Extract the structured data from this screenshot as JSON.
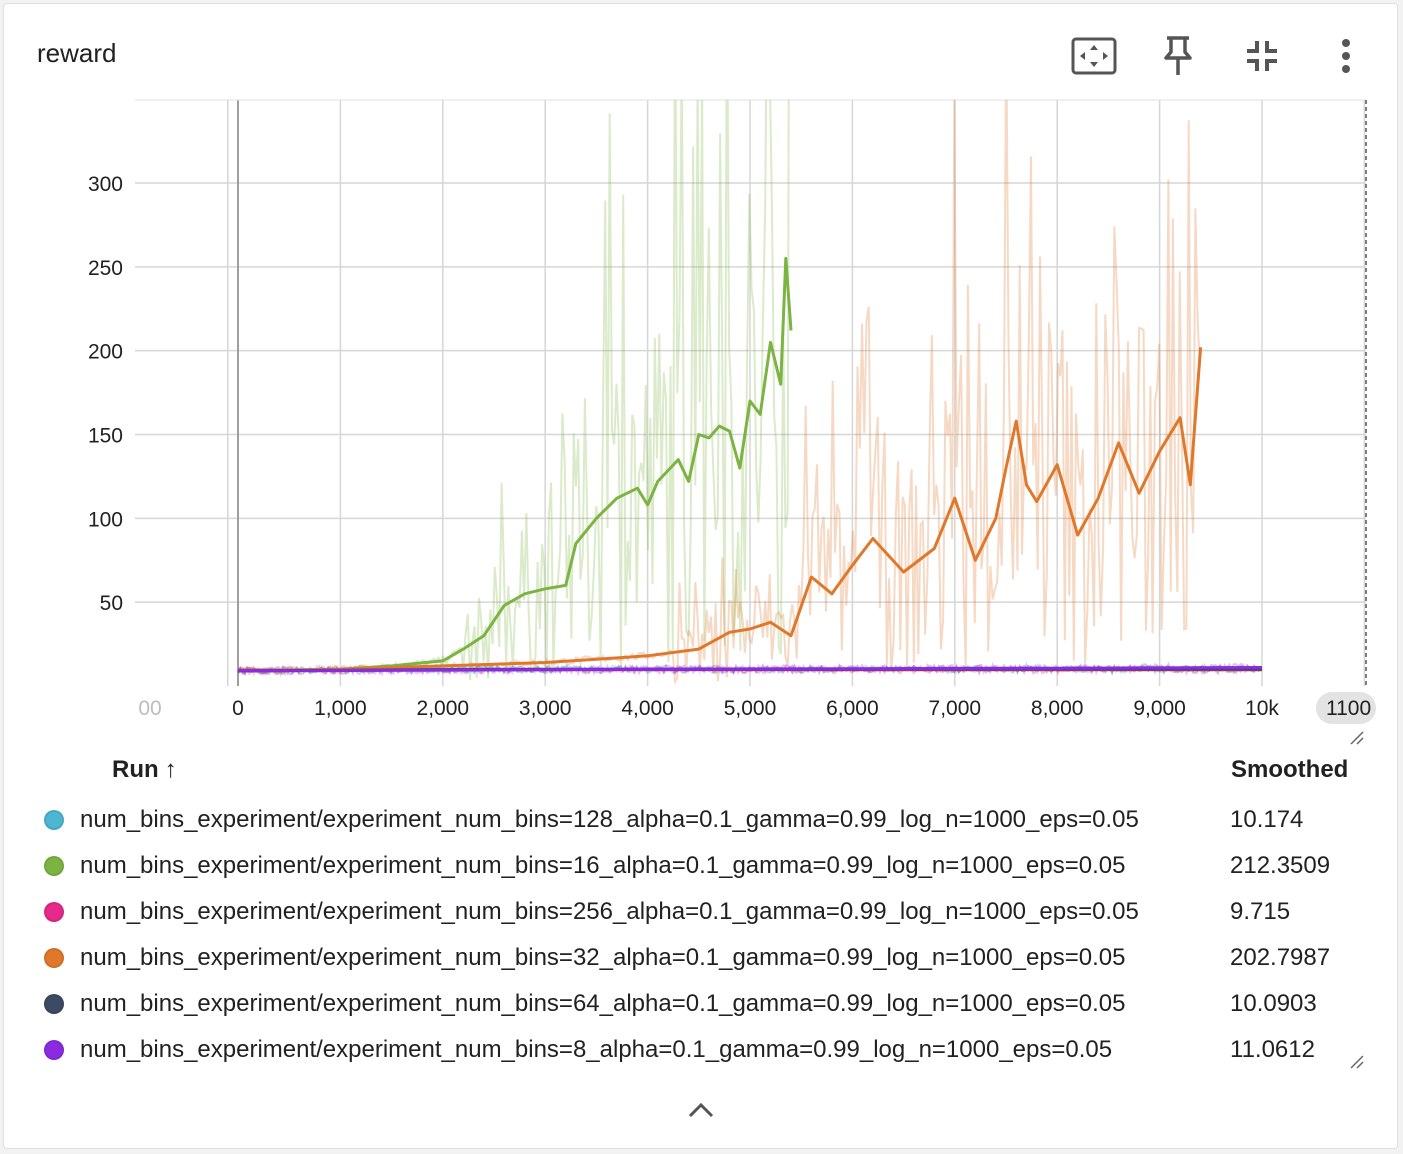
{
  "card": {
    "title": "reward"
  },
  "toolbar": {
    "items": [
      {
        "icon": "fit-to-data-icon"
      },
      {
        "icon": "pin-icon"
      },
      {
        "icon": "collapse-card-icon"
      },
      {
        "icon": "more-vert-icon"
      }
    ]
  },
  "chart_data": {
    "type": "line",
    "title": "",
    "xlabel": "",
    "ylabel": "",
    "xlim": [
      -200,
      11000
    ],
    "ylim": [
      0,
      350
    ],
    "x_ticks": [
      "00",
      "0",
      "1,000",
      "2,000",
      "3,000",
      "4,000",
      "5,000",
      "6,000",
      "7,000",
      "8,000",
      "9,000",
      "10k",
      "1100"
    ],
    "x_tick_values": [
      -100,
      0,
      1000,
      2000,
      3000,
      4000,
      5000,
      6000,
      7000,
      8000,
      9000,
      10000,
      11000
    ],
    "y_ticks": [
      "50",
      "100",
      "150",
      "200",
      "250",
      "300"
    ],
    "y_tick_values": [
      50,
      100,
      150,
      200,
      250,
      300
    ],
    "grid": true,
    "series": [
      {
        "name": "num_bins_experiment/experiment_num_bins=128_alpha=0.1_gamma=0.99_log_n=1000_eps=0.05",
        "color": "#4db6d0",
        "smoothed_value": "10.174",
        "x": [
          0,
          2000,
          4000,
          6000,
          8000,
          10000
        ],
        "y": [
          9,
          10,
          10,
          10,
          10,
          10.2
        ]
      },
      {
        "name": "num_bins_experiment/experiment_num_bins=16_alpha=0.1_gamma=0.99_log_n=1000_eps=0.05",
        "color": "#7cb342",
        "smoothed_value": "212.3509",
        "x": [
          0,
          1000,
          1500,
          2000,
          2200,
          2400,
          2600,
          2800,
          3000,
          3200,
          3300,
          3500,
          3700,
          3900,
          4000,
          4100,
          4300,
          4400,
          4500,
          4600,
          4700,
          4800,
          4900,
          5000,
          5100,
          5200,
          5300,
          5350,
          5400
        ],
        "y": [
          9,
          10,
          12,
          15,
          22,
          30,
          48,
          55,
          58,
          60,
          85,
          100,
          112,
          118,
          108,
          122,
          135,
          122,
          150,
          148,
          155,
          152,
          130,
          170,
          162,
          205,
          180,
          255,
          212
        ]
      },
      {
        "name": "num_bins_experiment/experiment_num_bins=256_alpha=0.1_gamma=0.99_log_n=1000_eps=0.05",
        "color": "#e7298a",
        "smoothed_value": "9.715",
        "x": [
          0,
          2000,
          4000,
          6000,
          8000,
          10000
        ],
        "y": [
          9.5,
          9.6,
          9.8,
          9.7,
          9.7,
          9.7
        ]
      },
      {
        "name": "num_bins_experiment/experiment_num_bins=32_alpha=0.1_gamma=0.99_log_n=1000_eps=0.05",
        "color": "#e0782c",
        "smoothed_value": "202.7987",
        "x": [
          0,
          1000,
          2000,
          2500,
          3000,
          3500,
          4000,
          4500,
          4800,
          5000,
          5200,
          5400,
          5600,
          5800,
          6000,
          6200,
          6500,
          6800,
          7000,
          7200,
          7400,
          7500,
          7600,
          7700,
          7800,
          8000,
          8200,
          8400,
          8600,
          8800,
          9000,
          9200,
          9300,
          9400
        ],
        "y": [
          9,
          10,
          12,
          13,
          14,
          16,
          18,
          22,
          32,
          34,
          38,
          30,
          65,
          55,
          72,
          88,
          68,
          82,
          112,
          75,
          100,
          130,
          158,
          120,
          110,
          132,
          90,
          112,
          145,
          115,
          140,
          160,
          120,
          202
        ]
      },
      {
        "name": "num_bins_experiment/experiment_num_bins=64_alpha=0.1_gamma=0.99_log_n=1000_eps=0.05",
        "color": "#3c4a63",
        "smoothed_value": "10.0903",
        "x": [
          0,
          2000,
          4000,
          6000,
          8000,
          10000
        ],
        "y": [
          9,
          9.8,
          10,
          10,
          10.1,
          10.1
        ]
      },
      {
        "name": "num_bins_experiment/experiment_num_bins=8_alpha=0.1_gamma=0.99_log_n=1000_eps=0.05",
        "color": "#8a2be2",
        "smoothed_value": "11.0612",
        "x": [
          0,
          2000,
          4000,
          6000,
          8000,
          10000
        ],
        "y": [
          9,
          9.5,
          10,
          10.3,
          10.6,
          11.06
        ]
      }
    ]
  },
  "legend": {
    "run_header": "Run",
    "sort_arrow": "↑",
    "smoothed_header": "Smoothed"
  }
}
